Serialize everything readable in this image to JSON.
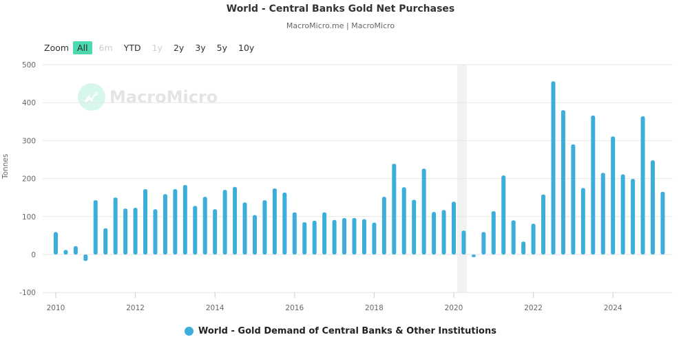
{
  "header": {
    "title": "World - Central Banks Gold Net Purchases",
    "subtitle": "MacroMicro.me | MacroMicro"
  },
  "zoom": {
    "label": "Zoom",
    "buttons": [
      {
        "label": "All",
        "state": "active"
      },
      {
        "label": "6m",
        "state": "disabled"
      },
      {
        "label": "YTD",
        "state": "normal"
      },
      {
        "label": "1y",
        "state": "disabled"
      },
      {
        "label": "2y",
        "state": "normal"
      },
      {
        "label": "3y",
        "state": "normal"
      },
      {
        "label": "5y",
        "state": "normal"
      },
      {
        "label": "10y",
        "state": "normal"
      }
    ]
  },
  "watermark": "MacroMicro",
  "colors": {
    "bar": "#3daedb",
    "grid": "#e6e6e6",
    "shade": "#f2f2f2",
    "zoom_active": "#4cd9b0"
  },
  "chart_data": {
    "type": "bar",
    "title": "World - Central Banks Gold Net Purchases",
    "subtitle": "MacroMicro.me | MacroMicro",
    "xlabel": "",
    "ylabel": "Tonnes",
    "ylim": [
      -100,
      500
    ],
    "yticks": [
      -100,
      0,
      100,
      200,
      300,
      400,
      500
    ],
    "xticks": [
      "2010",
      "2012",
      "2014",
      "2016",
      "2018",
      "2020",
      "2022",
      "2024"
    ],
    "grid": true,
    "legend_position": "bottom",
    "shaded_region": {
      "from": "2020 Q1",
      "to": "2020 Q2",
      "note": "recession shading"
    },
    "series": [
      {
        "name": "World - Gold Demand of Central Banks & Other Institutions",
        "color": "#3daedb",
        "categories": [
          "2010 Q1",
          "2010 Q2",
          "2010 Q3",
          "2010 Q4",
          "2011 Q1",
          "2011 Q2",
          "2011 Q3",
          "2011 Q4",
          "2012 Q1",
          "2012 Q2",
          "2012 Q3",
          "2012 Q4",
          "2013 Q1",
          "2013 Q2",
          "2013 Q3",
          "2013 Q4",
          "2014 Q1",
          "2014 Q2",
          "2014 Q3",
          "2014 Q4",
          "2015 Q1",
          "2015 Q2",
          "2015 Q3",
          "2015 Q4",
          "2016 Q1",
          "2016 Q2",
          "2016 Q3",
          "2016 Q4",
          "2017 Q1",
          "2017 Q2",
          "2017 Q3",
          "2017 Q4",
          "2018 Q1",
          "2018 Q2",
          "2018 Q3",
          "2018 Q4",
          "2019 Q1",
          "2019 Q2",
          "2019 Q3",
          "2019 Q4",
          "2020 Q1",
          "2020 Q2",
          "2020 Q3",
          "2020 Q4",
          "2021 Q1",
          "2021 Q2",
          "2021 Q3",
          "2021 Q4",
          "2022 Q1",
          "2022 Q2",
          "2022 Q3",
          "2022 Q4",
          "2023 Q1",
          "2023 Q2",
          "2023 Q3",
          "2023 Q4",
          "2024 Q1",
          "2024 Q2",
          "2024 Q3",
          "2024 Q4",
          "2025 Q1",
          "2025 Q2"
        ],
        "values": [
          59,
          12,
          22,
          -17,
          143,
          69,
          150,
          121,
          123,
          172,
          119,
          159,
          172,
          183,
          128,
          152,
          119,
          170,
          178,
          137,
          104,
          143,
          174,
          163,
          111,
          85,
          89,
          111,
          91,
          96,
          96,
          93,
          84,
          152,
          239,
          177,
          144,
          226,
          112,
          117,
          139,
          63,
          -7,
          59,
          114,
          208,
          90,
          34,
          81,
          158,
          456,
          380,
          290,
          175,
          366,
          215,
          311,
          211,
          199,
          364,
          248,
          165
        ]
      }
    ]
  }
}
